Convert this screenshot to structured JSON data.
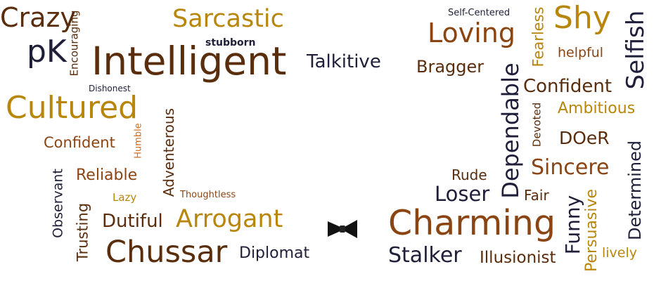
{
  "words": {
    "crazy": "Crazy",
    "encouraging": "Encouraging",
    "sarcastic": "Sarcastic",
    "self_centered": "Self-Centered",
    "fearless": "Fearless",
    "shy": "Shy",
    "selfish": "Selfish",
    "pk": "pK",
    "stubborn": "stubborn",
    "intelligent": "Intelligent",
    "talkitive": "Talkitive",
    "loving": "Loving",
    "helpful": "helpful",
    "bragger": "Bragger",
    "dependable": "Dependable",
    "confident_right": "Confident",
    "dishonest": "Dishonest",
    "cultured": "Cultured",
    "ambitious": "Ambitious",
    "devoted": "Devoted",
    "doer": "DOeR",
    "confident_left": "Confident",
    "humble": "Humble",
    "adventerous": "Adventerous",
    "sincere": "Sincere",
    "determined": "Determined",
    "rude": "Rude",
    "observant": "Observant",
    "reliable": "Reliable",
    "loser": "Loser",
    "fair": "Fair",
    "lazy": "Lazy",
    "thoughtless": "Thoughtless",
    "persuasive": "Persuasive",
    "trusting": "Trusting",
    "dutiful": "Dutiful",
    "arrogant": "Arrogant",
    "charming": "Charming",
    "funny": "Funny",
    "chussar": "Chussar",
    "diplomat": "Diplomat",
    "stalker": "Stalker",
    "illusionist": "Illusionist",
    "lively": "lively"
  },
  "colors": {
    "dark_brown": "#5a2d0c",
    "brown": "#8b4513",
    "gold": "#b8860b",
    "navy": "#1f1f3a",
    "orange": "#d2691e"
  }
}
